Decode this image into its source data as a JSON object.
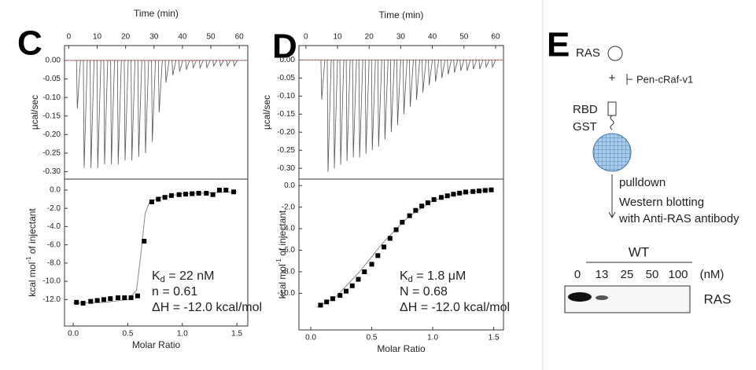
{
  "chart_data": [
    {
      "panel_label": "C",
      "type": "spike",
      "xlabel": "Time (min)",
      "ylabel": "µcal/sec",
      "color": "#555555",
      "x": [
        3,
        5.4,
        7.8,
        10.2,
        12.6,
        15,
        17.4,
        19.8,
        22.2,
        24.6,
        27,
        29.4,
        31.8,
        34.2,
        36.6,
        39,
        41.4,
        43.8,
        46.2,
        48.6,
        51,
        53.4,
        55.8,
        58.2
      ],
      "values": [
        -0.13,
        -0.29,
        -0.29,
        -0.29,
        -0.28,
        -0.28,
        -0.28,
        -0.27,
        -0.27,
        -0.26,
        -0.25,
        -0.22,
        -0.14,
        -0.06,
        -0.04,
        -0.03,
        -0.025,
        -0.02,
        -0.02,
        -0.02,
        -0.015,
        -0.015,
        -0.015,
        -0.015
      ],
      "xlim": [
        -1.5,
        63
      ],
      "ylim": [
        -0.32,
        0.04
      ],
      "xticks": [
        0,
        10,
        20,
        30,
        40,
        50,
        60
      ],
      "yticks": [
        {
          "value": 0,
          "label": "0.00"
        },
        -0.05,
        {
          "value": -0.1,
          "label": "-0.10"
        },
        -0.15,
        {
          "value": -0.2,
          "label": "-0.20"
        },
        -0.25,
        {
          "value": -0.3,
          "label": "-0.30"
        }
      ]
    },
    {
      "type": "scatter",
      "xlabel": "Molar Ratio",
      "ylabel": {
        "text": "kcal mol",
        "sup": "-1",
        "tail": " of injectant"
      },
      "color": "#000000",
      "x": [
        0.03,
        0.09,
        0.16,
        0.22,
        0.28,
        0.34,
        0.41,
        0.47,
        0.53,
        0.59,
        0.65,
        0.72,
        0.78,
        0.84,
        0.9,
        0.97,
        1.03,
        1.09,
        1.15,
        1.22,
        1.28,
        1.34,
        1.4,
        1.47
      ],
      "values": [
        -12.3,
        -12.4,
        -12.2,
        -12.1,
        -12.0,
        -11.9,
        -11.8,
        -11.8,
        -11.8,
        -11.6,
        -5.6,
        -1.3,
        -1.0,
        -0.8,
        -0.6,
        -0.5,
        -0.45,
        -0.4,
        -0.35,
        -0.35,
        -0.5,
        0.0,
        0.0,
        -0.2
      ],
      "fit": {
        "color": "#888888",
        "x": [
          0,
          0.3,
          0.5,
          0.58,
          0.62,
          0.66,
          0.7,
          0.8,
          1.0,
          1.5
        ],
        "values": [
          -12.4,
          -12.3,
          -12.0,
          -11.0,
          -7.0,
          -2.5,
          -1.3,
          -0.8,
          -0.4,
          -0.2
        ]
      },
      "xlim": [
        -0.08,
        1.6
      ],
      "ylim": [
        -14.9,
        1.2
      ],
      "xticks": [
        {
          "value": 0,
          "label": "0.0"
        },
        0.5,
        {
          "value": 1,
          "label": "1.0"
        },
        1.5
      ],
      "yticks": [
        {
          "value": 0,
          "label": "0.0"
        },
        {
          "value": -2,
          "label": "-2.0"
        },
        {
          "value": -4,
          "label": "-4.0"
        },
        {
          "value": -6,
          "label": "-6.0"
        },
        {
          "value": -8,
          "label": "-8.0"
        },
        {
          "value": -10,
          "label": "-10.0"
        },
        {
          "value": -12,
          "label": "-12.0"
        }
      ],
      "annotations": [
        {
          "symbol": "K",
          "subscript": "d",
          "text": " = 22 nM",
          "color": "#e8202a"
        },
        {
          "text": "n = 0.61"
        },
        {
          "text": "ΔH = -12.0 kcal/mol"
        }
      ]
    },
    {
      "panel_label": "D",
      "type": "spike",
      "xlabel": "Time (min)",
      "ylabel": "µcal/sec",
      "color": "#555555",
      "x": [
        5,
        7,
        9,
        11,
        13,
        15,
        17,
        19,
        21,
        23,
        25,
        27,
        29,
        31,
        33,
        35,
        37,
        39,
        41,
        43,
        45,
        47,
        49,
        51,
        53,
        55,
        57,
        59
      ],
      "values": [
        -0.11,
        -0.31,
        -0.3,
        -0.29,
        -0.28,
        -0.27,
        -0.27,
        -0.26,
        -0.25,
        -0.24,
        -0.22,
        -0.2,
        -0.18,
        -0.15,
        -0.13,
        -0.11,
        -0.09,
        -0.07,
        -0.06,
        -0.05,
        -0.04,
        -0.035,
        -0.03,
        -0.03,
        -0.025,
        -0.025,
        -0.02,
        -0.02
      ],
      "xlim": [
        -2.2,
        62.5
      ],
      "ylim": [
        -0.33,
        0.04
      ],
      "xticks": [
        0,
        10,
        20,
        30,
        40,
        50,
        60
      ],
      "yticks": [
        {
          "value": 0,
          "label": "0.00"
        },
        -0.05,
        {
          "value": -0.1,
          "label": "-0.10"
        },
        -0.15,
        {
          "value": -0.2,
          "label": "-0.20"
        },
        -0.25,
        {
          "value": -0.3,
          "label": "-0.30"
        }
      ]
    },
    {
      "type": "scatter",
      "xlabel": "Molar Ratio",
      "ylabel": {
        "text": "kcal mol",
        "sup": "-1",
        "tail": " of injectant"
      },
      "color": "#000000",
      "x": [
        0.08,
        0.13,
        0.18,
        0.24,
        0.29,
        0.34,
        0.39,
        0.44,
        0.5,
        0.55,
        0.6,
        0.65,
        0.7,
        0.75,
        0.81,
        0.86,
        0.91,
        0.96,
        1.01,
        1.07,
        1.12,
        1.17,
        1.22,
        1.27,
        1.33,
        1.38,
        1.43,
        1.48
      ],
      "values": [
        -11.1,
        -10.8,
        -10.5,
        -10.2,
        -9.8,
        -9.3,
        -8.7,
        -8.0,
        -7.3,
        -6.5,
        -5.7,
        -4.9,
        -4.1,
        -3.4,
        -2.8,
        -2.3,
        -1.9,
        -1.6,
        -1.3,
        -1.1,
        -0.95,
        -0.8,
        -0.7,
        -0.6,
        -0.55,
        -0.5,
        -0.45,
        -0.4
      ],
      "fit": {
        "color": "#888888",
        "x": [
          0.05,
          0.2,
          0.4,
          0.6,
          0.8,
          1.0,
          1.2,
          1.5
        ],
        "values": [
          -11.3,
          -10.4,
          -8.0,
          -5.2,
          -2.9,
          -1.4,
          -0.75,
          -0.35
        ]
      },
      "xlim": [
        -0.097,
        1.58
      ],
      "ylim": [
        -13.4,
        0.6
      ],
      "xticks": [
        {
          "value": 0,
          "label": "0.0"
        },
        0.5,
        {
          "value": 1,
          "label": "1.0"
        },
        1.5
      ],
      "yticks": [
        {
          "value": 0,
          "label": "0.0"
        },
        {
          "value": -2,
          "label": "-2.0"
        },
        {
          "value": -4,
          "label": "-4.0"
        },
        {
          "value": -6,
          "label": "-6.0"
        },
        {
          "value": -8,
          "label": "-8.0"
        },
        {
          "value": -10,
          "label": "-10.0"
        }
      ],
      "annotations": [
        {
          "symbol": "K",
          "subscript": "d",
          "text": " = 1.8 μM",
          "color": "#e8202a"
        },
        {
          "text": "N = 0.68"
        },
        {
          "text": "ΔH = -12.0 kcal/mol"
        }
      ]
    }
  ],
  "panel_e": {
    "label": "E",
    "ras": "RAS",
    "plus": "+",
    "inhibitor": "Pen-cRaf-v1",
    "rbd": "RBD",
    "gst": "GST",
    "step1": "pulldown",
    "step2": [
      "Western blotting",
      "with Anti-RAS antibody"
    ],
    "blot": {
      "group": "WT",
      "lanes": [
        0,
        13,
        25,
        50,
        100
      ],
      "unit": "(nM)",
      "band": "RAS"
    }
  }
}
